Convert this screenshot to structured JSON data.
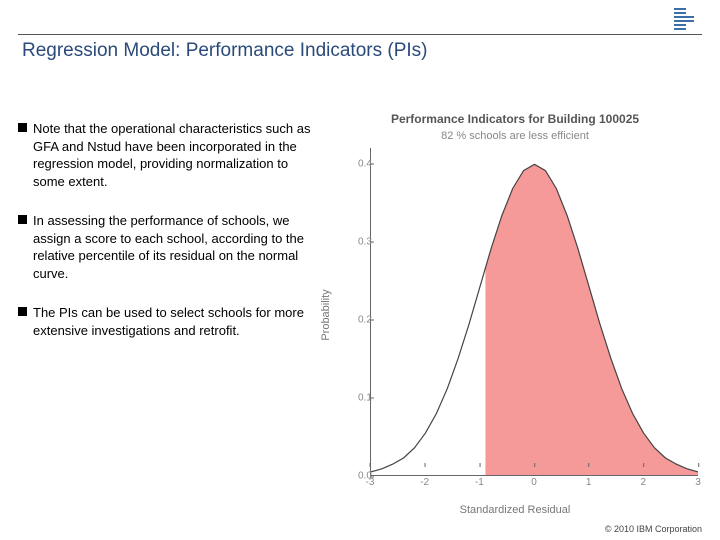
{
  "header": {
    "logo_name": "ibm-logo",
    "logo_bar_color": "#3b6ea5"
  },
  "title": "Regression Model: Performance Indicators (PIs)",
  "bullets": [
    "Note that the operational characteristics such as GFA and Nstud have been incorporated in the regression model, providing normalization to some extent.",
    "In assessing the performance of schools, we assign a score to each school, according to the relative percentile of its residual on the normal curve.",
    "The PIs can be used to select schools for more extensive investigations and retrofit."
  ],
  "chart": {
    "title_prefix": "Performance Indicators for Building",
    "building_id": "100025",
    "subtitle": "82 % schools are less efficient",
    "ylabel": "Probability",
    "xlabel": "Standardized Residual",
    "x_ticks": [
      -3,
      -2,
      -1,
      0,
      1,
      2,
      3
    ],
    "y_ticks": [
      "0.0",
      "0.1",
      "0.2",
      "0.3",
      "0.4"
    ],
    "xlim": [
      -3,
      3
    ],
    "ylim": [
      0,
      0.42
    ],
    "curve_stroke": "#444444",
    "curve_stroke_width": 1.2,
    "fill_color": "#f59494",
    "fill_opacity": 0.95,
    "fill_from_x": -0.9,
    "background": "#ffffff",
    "curve_points": [
      {
        "x": -3.0,
        "y": 0.004
      },
      {
        "x": -2.8,
        "y": 0.008
      },
      {
        "x": -2.6,
        "y": 0.014
      },
      {
        "x": -2.4,
        "y": 0.022
      },
      {
        "x": -2.2,
        "y": 0.035
      },
      {
        "x": -2.0,
        "y": 0.054
      },
      {
        "x": -1.8,
        "y": 0.079
      },
      {
        "x": -1.6,
        "y": 0.111
      },
      {
        "x": -1.4,
        "y": 0.15
      },
      {
        "x": -1.2,
        "y": 0.194
      },
      {
        "x": -1.0,
        "y": 0.242
      },
      {
        "x": -0.8,
        "y": 0.29
      },
      {
        "x": -0.6,
        "y": 0.333
      },
      {
        "x": -0.4,
        "y": 0.368
      },
      {
        "x": -0.2,
        "y": 0.391
      },
      {
        "x": 0.0,
        "y": 0.399
      },
      {
        "x": 0.2,
        "y": 0.391
      },
      {
        "x": 0.4,
        "y": 0.368
      },
      {
        "x": 0.6,
        "y": 0.333
      },
      {
        "x": 0.8,
        "y": 0.29
      },
      {
        "x": 1.0,
        "y": 0.242
      },
      {
        "x": 1.2,
        "y": 0.194
      },
      {
        "x": 1.4,
        "y": 0.15
      },
      {
        "x": 1.6,
        "y": 0.111
      },
      {
        "x": 1.8,
        "y": 0.079
      },
      {
        "x": 2.0,
        "y": 0.054
      },
      {
        "x": 2.2,
        "y": 0.035
      },
      {
        "x": 2.4,
        "y": 0.022
      },
      {
        "x": 2.6,
        "y": 0.014
      },
      {
        "x": 2.8,
        "y": 0.008
      },
      {
        "x": 3.0,
        "y": 0.004
      }
    ]
  },
  "footer": "© 2010 IBM Corporation"
}
